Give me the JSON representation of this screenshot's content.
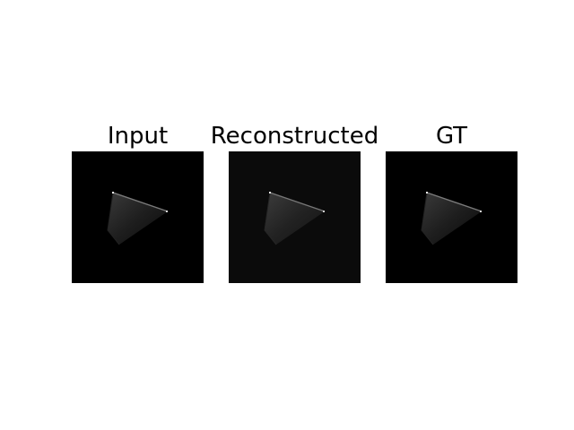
{
  "figure": {
    "panels": [
      {
        "title": "Input",
        "background": "#000000"
      },
      {
        "title": "Reconstructed",
        "background": "#0b0b0b"
      },
      {
        "title": "GT",
        "background": "#000000"
      }
    ]
  }
}
